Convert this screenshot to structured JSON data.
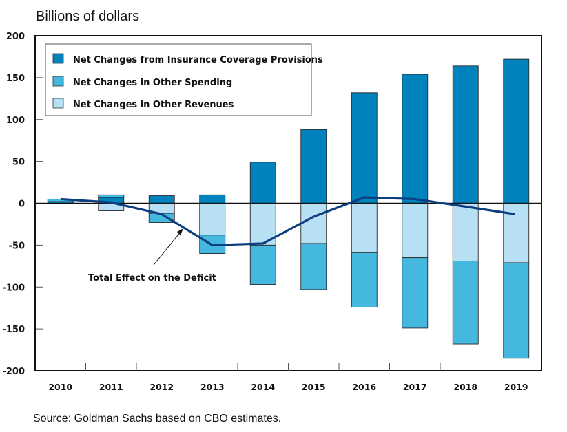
{
  "chart_data": {
    "type": "bar",
    "stacked": true,
    "title": "Billions of dollars",
    "xlabel": "",
    "ylabel": "Billions of dollars",
    "ylim": [
      -200,
      200
    ],
    "yticks": [
      200,
      150,
      100,
      50,
      0,
      -50,
      -100,
      -150,
      -200
    ],
    "ytick_labels": [
      "200",
      "150",
      "100",
      "50",
      "0",
      "-50",
      "-100",
      "-150",
      "-200"
    ],
    "categories": [
      "2010",
      "2011",
      "2012",
      "2013",
      "2014",
      "2015",
      "2016",
      "2017",
      "2018",
      "2019"
    ],
    "series": [
      {
        "name": "Net Changes from Insurance Coverage Provisions",
        "color": "#0083BD",
        "values": [
          2,
          7,
          9,
          10,
          49,
          88,
          132,
          154,
          164,
          172
        ]
      },
      {
        "name": "Net Changes in Other Spending",
        "color": "#45B8E0",
        "values": [
          3,
          3,
          -11,
          -22,
          -47,
          -55,
          -65,
          -84,
          -99,
          -114
        ]
      },
      {
        "name": "Net Changes in Other Revenues",
        "color": "#B8E0F5",
        "values": [
          0,
          -9,
          -12,
          -38,
          -50,
          -48,
          -59,
          -65,
          -69,
          -71
        ]
      }
    ],
    "line_series": {
      "name": "Total Effect on the Deficit",
      "color": "#0D3F80",
      "values": [
        5,
        1,
        -13,
        -50,
        -48,
        -16,
        7,
        5,
        -4,
        -13
      ]
    },
    "legend": {
      "position": "top-left",
      "entries": [
        "Net Changes from Insurance Coverage Provisions",
        "Net Changes in Other Spending",
        "Net Changes in Other Revenues"
      ]
    },
    "annotations": [
      {
        "text": "Total Effect on the Deficit",
        "points_to": "2012-2013 line segment"
      }
    ],
    "grid": false
  },
  "source": "Source: Goldman Sachs based on CBO estimates."
}
